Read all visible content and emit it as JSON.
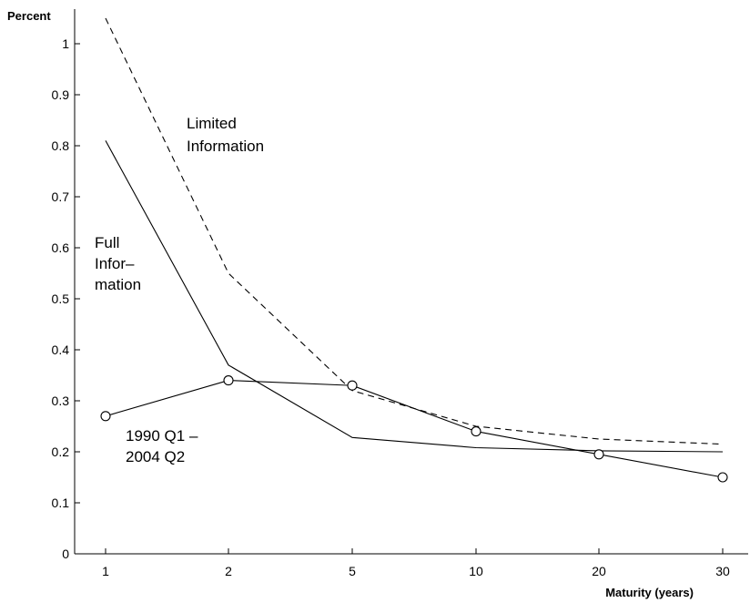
{
  "chart_data": {
    "type": "line",
    "xlabel": "Maturity (years)",
    "ylabel": "Percent",
    "categories": [
      "1",
      "2",
      "5",
      "10",
      "20",
      "30"
    ],
    "ylim": [
      0,
      1.05
    ],
    "yticks": [
      "0",
      "0.1",
      "0.2",
      "0.3",
      "0.4",
      "0.5",
      "0.6",
      "0.7",
      "0.8",
      "0.9",
      "1"
    ],
    "grid": false,
    "series": [
      {
        "id": "limited",
        "name": "Limited Information",
        "values": [
          1.05,
          0.55,
          0.32,
          0.25,
          0.225,
          0.215
        ],
        "style": "dashed",
        "markers": false
      },
      {
        "id": "full",
        "name": "Full Information",
        "values": [
          0.81,
          0.37,
          0.228,
          0.208,
          0.202,
          0.2
        ],
        "style": "solid",
        "markers": false
      },
      {
        "id": "actual",
        "name": "1990 Q1 – 2004 Q2",
        "values": [
          0.27,
          0.34,
          0.33,
          0.24,
          0.195,
          0.15
        ],
        "style": "solid",
        "markers": true
      }
    ],
    "annotations": {
      "limited": [
        "Limited",
        "Information"
      ],
      "full": [
        "Full",
        "Infor–",
        "mation"
      ],
      "actual": [
        "1990 Q1 –",
        "2004 Q2"
      ]
    },
    "line_color": "#000000"
  }
}
